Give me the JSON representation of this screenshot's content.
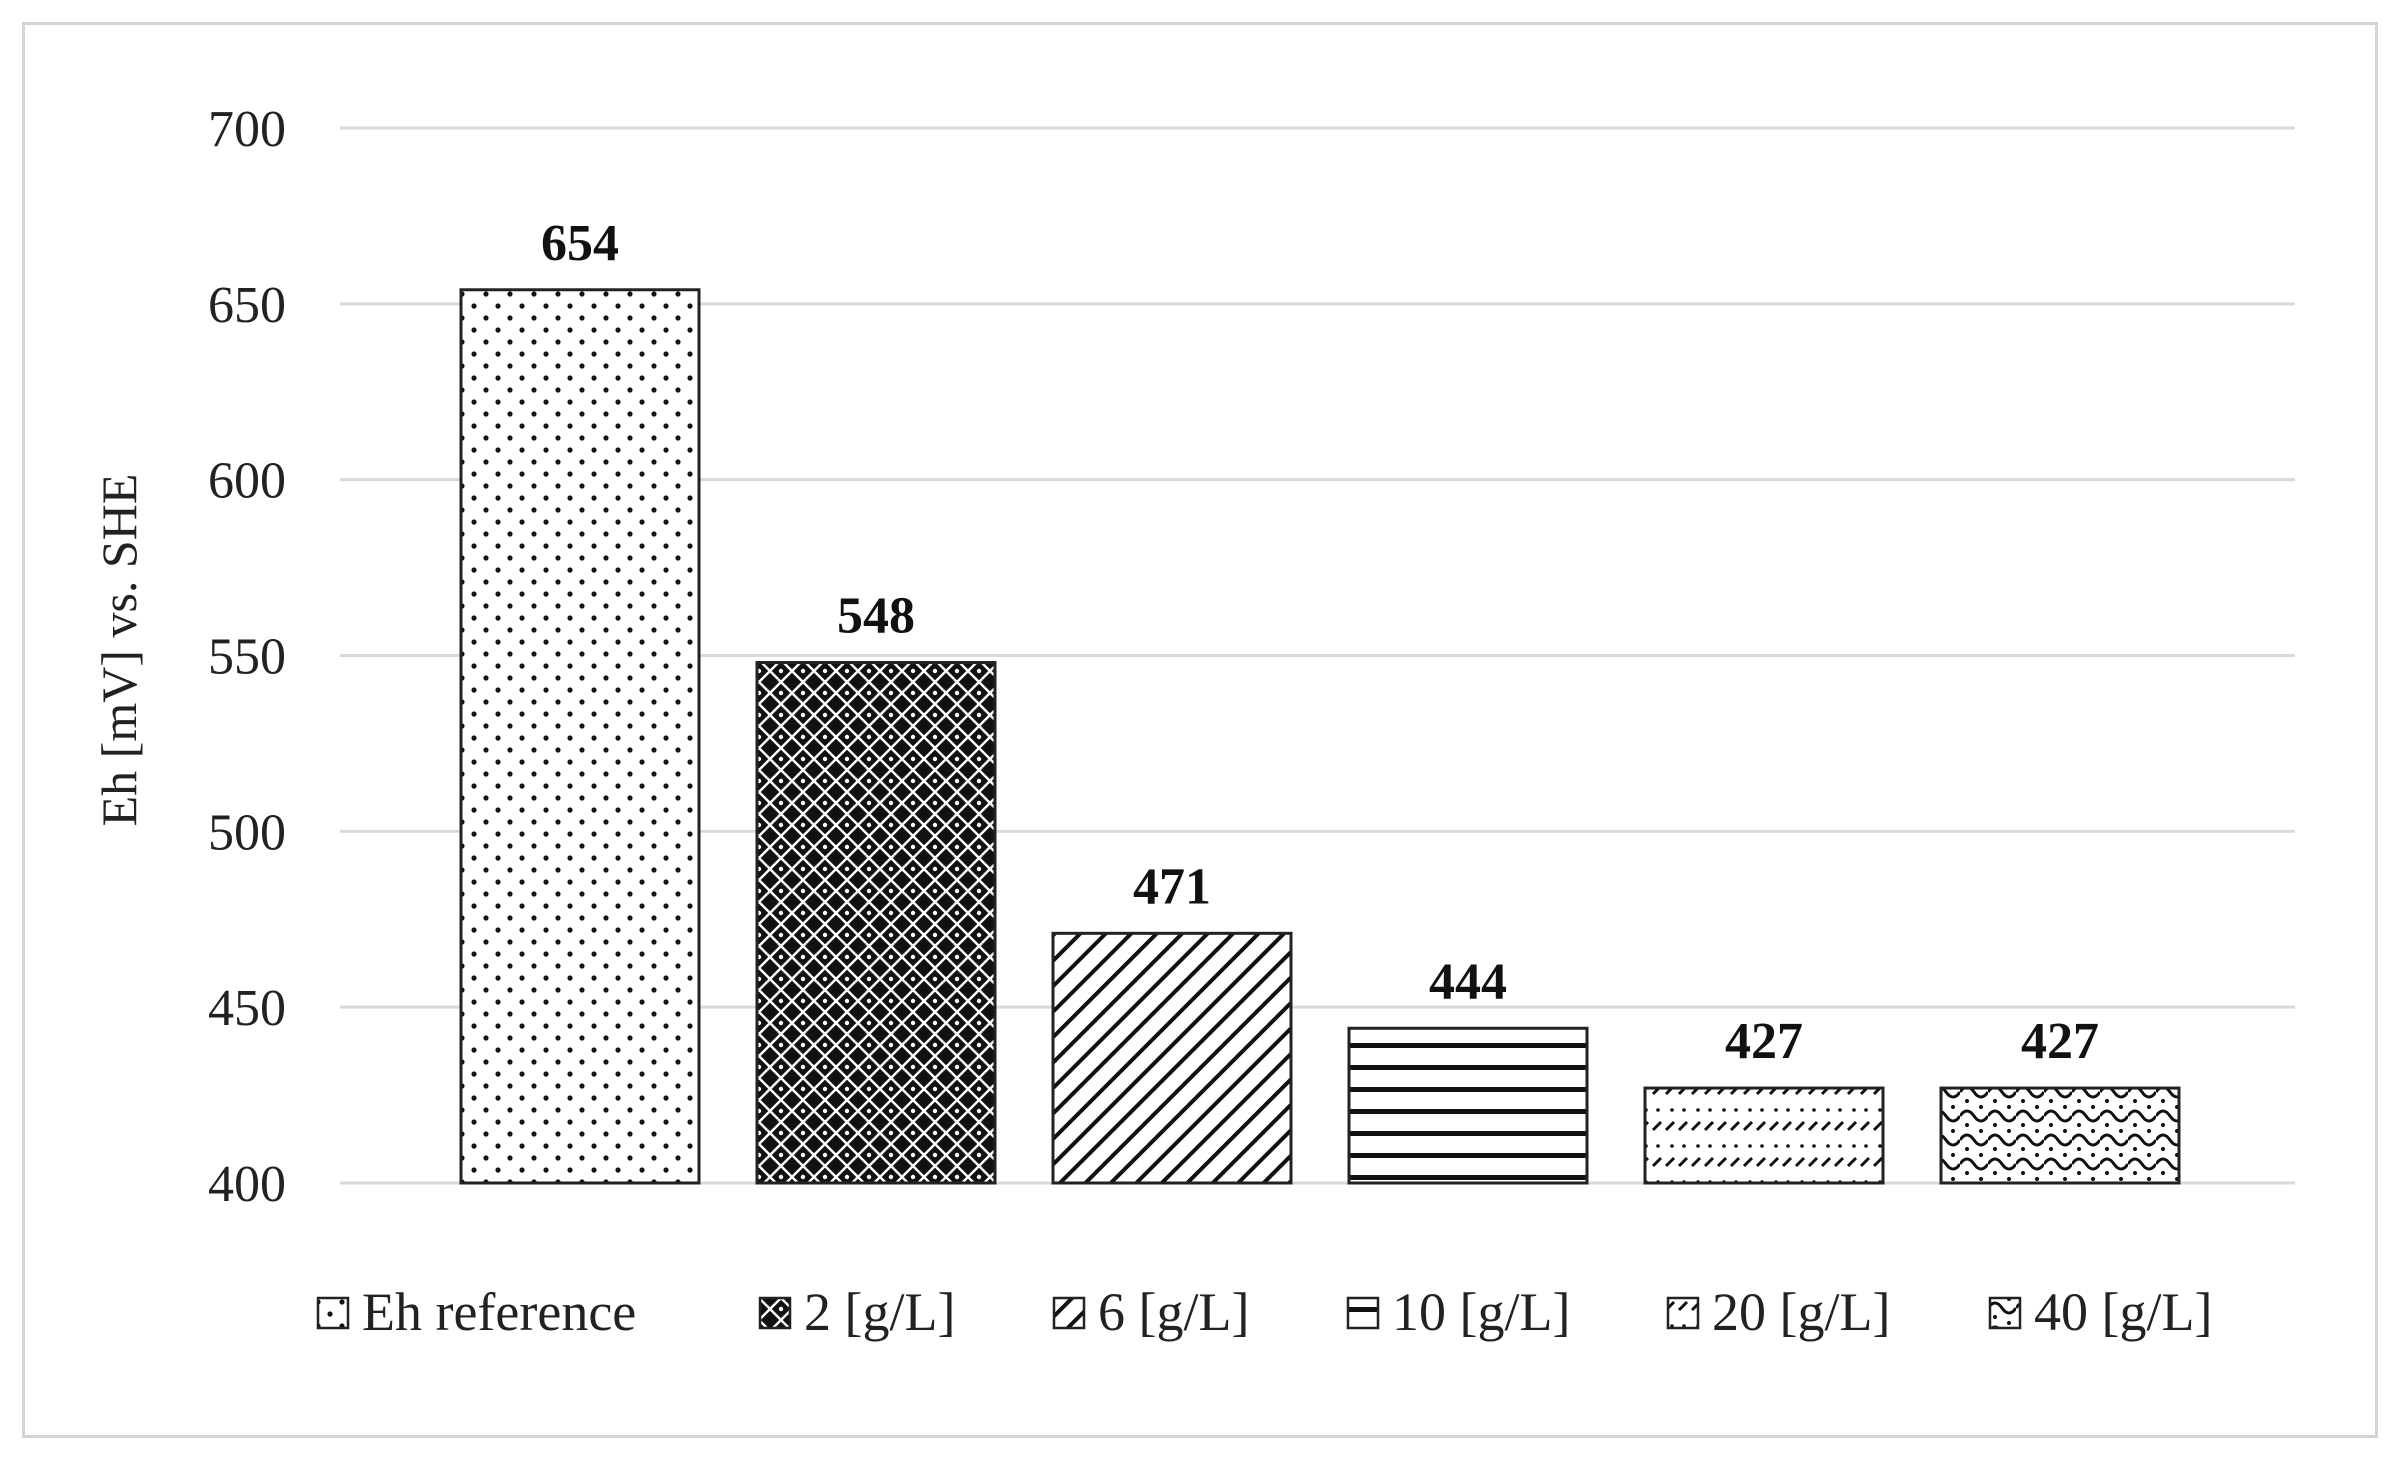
{
  "chart_data": {
    "type": "bar",
    "categories": [
      "Eh reference",
      "2 [g/L]",
      "6 [g/L]",
      "10 [g/L]",
      "20 [g/L]",
      "40 [g/L]"
    ],
    "values": [
      654,
      548,
      471,
      444,
      427,
      427
    ],
    "data_labels": [
      "654",
      "548",
      "471",
      "444",
      "427",
      "427"
    ],
    "patterns": [
      "dots",
      "lattice",
      "diagonal",
      "horizontal",
      "dashed",
      "waves"
    ],
    "title": "",
    "xlabel": "",
    "ylabel": "Eh [mV] vs. SHE",
    "ylim": [
      400,
      700
    ],
    "yticks": [
      400,
      450,
      500,
      550,
      600,
      650,
      700
    ],
    "grid": true,
    "legend_position": "bottom",
    "colors": {
      "bar_stroke": "#222222",
      "grid": "#d9d9d9",
      "pattern_ink": "#111111",
      "frame": "#d4d4d4"
    }
  }
}
